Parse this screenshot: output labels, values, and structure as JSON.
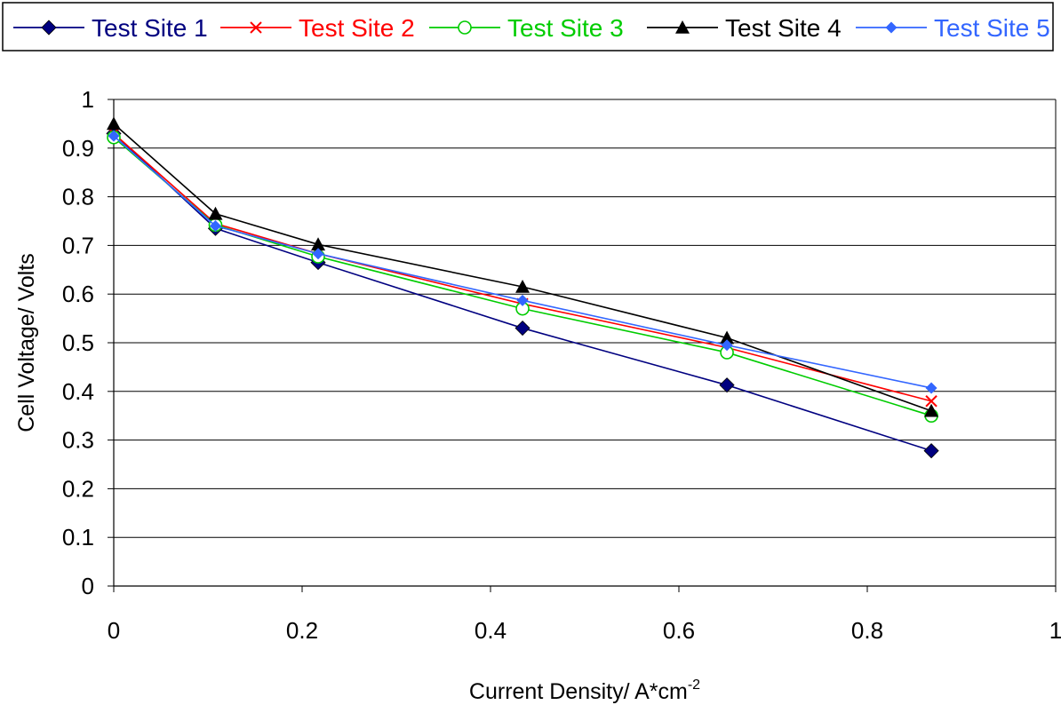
{
  "chart_data": {
    "type": "line",
    "title": "",
    "xlabel": "Current Density/ A*cm",
    "xlabel_superscript": "-2",
    "ylabel": "Cell Voltage/ Volts",
    "xlim": [
      0,
      1
    ],
    "ylim": [
      0,
      1
    ],
    "x_ticks": [
      "0",
      "0.2",
      "0.4",
      "0.6",
      "0.8",
      "1"
    ],
    "y_ticks": [
      "0",
      "0.1",
      "0.2",
      "0.3",
      "0.4",
      "0.5",
      "0.6",
      "0.7",
      "0.8",
      "0.9",
      "1"
    ],
    "grid": "horizontal",
    "legend_position": "top",
    "x": [
      0,
      0.108,
      0.217,
      0.434,
      0.651,
      0.868
    ],
    "series": [
      {
        "name": "Test Site 1",
        "color": "#000080",
        "marker": "filled-diamond",
        "values": [
          0.93,
          0.735,
          0.665,
          0.53,
          0.413,
          0.278
        ]
      },
      {
        "name": "Test Site 2",
        "color": "#ff0000",
        "marker": "cross",
        "values": [
          0.93,
          0.745,
          0.683,
          0.58,
          0.49,
          0.38
        ]
      },
      {
        "name": "Test Site 3",
        "color": "#00cc00",
        "marker": "open-circle",
        "values": [
          0.922,
          0.742,
          0.677,
          0.57,
          0.48,
          0.35
        ]
      },
      {
        "name": "Test Site 4",
        "color": "#000000",
        "marker": "filled-triangle",
        "values": [
          0.95,
          0.765,
          0.702,
          0.615,
          0.51,
          0.36
        ]
      },
      {
        "name": "Test Site 5",
        "color": "#3366ff",
        "marker": "small-diamond",
        "values": [
          0.925,
          0.74,
          0.683,
          0.587,
          0.495,
          0.407
        ]
      }
    ]
  }
}
